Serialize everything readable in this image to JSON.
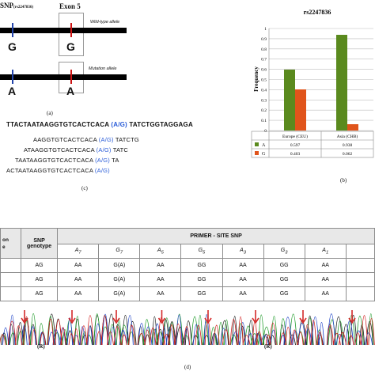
{
  "panel_a": {
    "snp_title": "SNP",
    "snp_sub": "(rs2247836)",
    "exon_title": "Exon 5",
    "wild_label": "Wild-type allele",
    "mut_label": "Mutation allele",
    "wild_snp_allele": "G",
    "wild_exon_allele": "G",
    "mut_snp_allele": "A",
    "mut_exon_allele": "A",
    "caption": "(a)"
  },
  "panel_b": {
    "caption": "(b)"
  },
  "chart_data": {
    "type": "bar",
    "title": "rs2247836",
    "ylabel": "Frequency",
    "xlabel": "",
    "categories": [
      "Europe (CEU)",
      "Asia (CHB)"
    ],
    "series": [
      {
        "name": "A",
        "color": "#5a8a1e",
        "values": [
          0.597,
          0.938
        ],
        "labels": [
          "0.597",
          "0.938"
        ]
      },
      {
        "name": "G",
        "color": "#e0541b",
        "values": [
          0.403,
          0.062
        ],
        "labels": [
          "0.403",
          "0.062"
        ]
      }
    ],
    "ylim": [
      0,
      1
    ],
    "yticks": [
      "0",
      "0.1",
      "0.2",
      "0.3",
      "0.4",
      "0.5",
      "0.6",
      "0.7",
      "0.8",
      "0.9",
      "1"
    ],
    "grid": true,
    "legend": "table-below"
  },
  "panel_c": {
    "template_pre": "TTACTAATAAGGTGTCACTCACA",
    "template_snp": "(A/G)",
    "template_post": "TATCTGGTAGGAGA",
    "primers": [
      {
        "pre": "AAGGTGTCACTCACA ",
        "snp": "(A/G)",
        "post": "TATCTG"
      },
      {
        "pre": "ATAAGGTGTCACTCACA ",
        "snp": "(A/G)",
        "post": "TATC"
      },
      {
        "pre": "TAATAAGGTGTCACTCACA ",
        "snp": "(A/G)",
        "post": "TA"
      },
      {
        "pre": "ACTAATAAGGTGTCACTCACA ",
        "snp": "(A/G)",
        "post": ""
      }
    ],
    "caption": "(c)"
  },
  "panel_d": {
    "col0": "on\ne",
    "col1": "SNP genotype",
    "primer_header": "PRIMER - SITE SNP",
    "sub_headers": [
      "A",
      "G",
      "A",
      "G",
      "A",
      "G",
      "A"
    ],
    "sub_indices": [
      "7",
      "7",
      "5",
      "5",
      "3",
      "3",
      "1"
    ],
    "rows": [
      [
        "AG",
        "AA",
        "G(A)",
        "AA",
        "GG",
        "AA",
        "GG",
        "AA"
      ],
      [
        "AG",
        "AA",
        "G(A)",
        "AA",
        "GG",
        "AA",
        "GG",
        "AA"
      ],
      [
        "AG",
        "AA",
        "G(A)",
        "AA",
        "GG",
        "AA",
        "GG",
        "AA"
      ]
    ],
    "trace_labels": [
      "(R)",
      "(R)"
    ],
    "caption": "(d)"
  }
}
